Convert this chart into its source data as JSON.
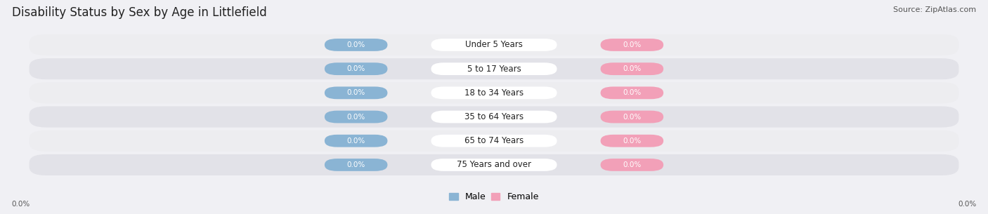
{
  "title": "Disability Status by Sex by Age in Littlefield",
  "source": "Source: ZipAtlas.com",
  "categories": [
    "Under 5 Years",
    "5 to 17 Years",
    "18 to 34 Years",
    "35 to 64 Years",
    "65 to 74 Years",
    "75 Years and over"
  ],
  "male_values": [
    0.0,
    0.0,
    0.0,
    0.0,
    0.0,
    0.0
  ],
  "female_values": [
    0.0,
    0.0,
    0.0,
    0.0,
    0.0,
    0.0
  ],
  "male_color": "#8ab4d4",
  "female_color": "#f2a0b8",
  "male_label": "Male",
  "female_label": "Female",
  "row_bg_light": "#ededf0",
  "row_bg_dark": "#e2e2e8",
  "fig_bg": "#f0f0f4",
  "title_color": "#222222",
  "source_color": "#555555",
  "axis_label_left": "0.0%",
  "axis_label_right": "0.0%",
  "title_fontsize": 12,
  "source_fontsize": 8,
  "category_fontsize": 8.5,
  "value_fontsize": 7.5,
  "legend_fontsize": 9
}
